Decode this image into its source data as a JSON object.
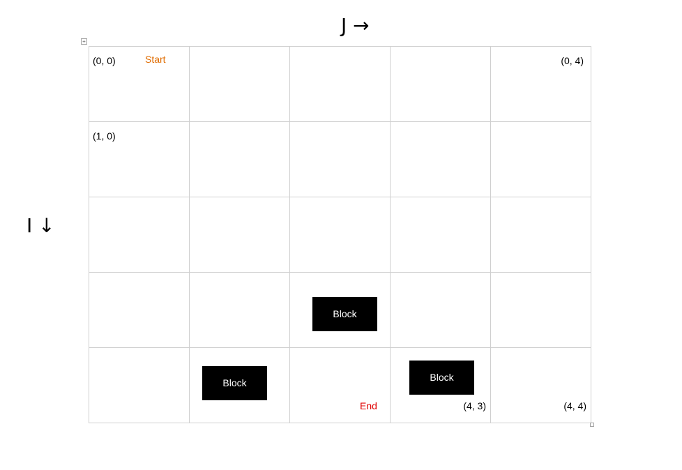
{
  "axes": {
    "j_label": "J →",
    "i_label": "I ↓"
  },
  "cells": {
    "c00": {
      "coord": "(0, 0)",
      "marker": "Start"
    },
    "c04": {
      "coord": "(0, 4)"
    },
    "c10": {
      "coord": "(1, 0)"
    },
    "c42": {
      "marker": "End"
    },
    "c43": {
      "coord": "(4, 3)"
    },
    "c44": {
      "coord": "(4, 4)"
    }
  },
  "blocks": {
    "b32": "Block",
    "b41": "Block",
    "b43": "Block"
  },
  "colors": {
    "start": "#e06c00",
    "end": "#e00000",
    "block_bg": "#000000",
    "block_text": "#ffffff",
    "grid_line": "#cfcfcf"
  }
}
